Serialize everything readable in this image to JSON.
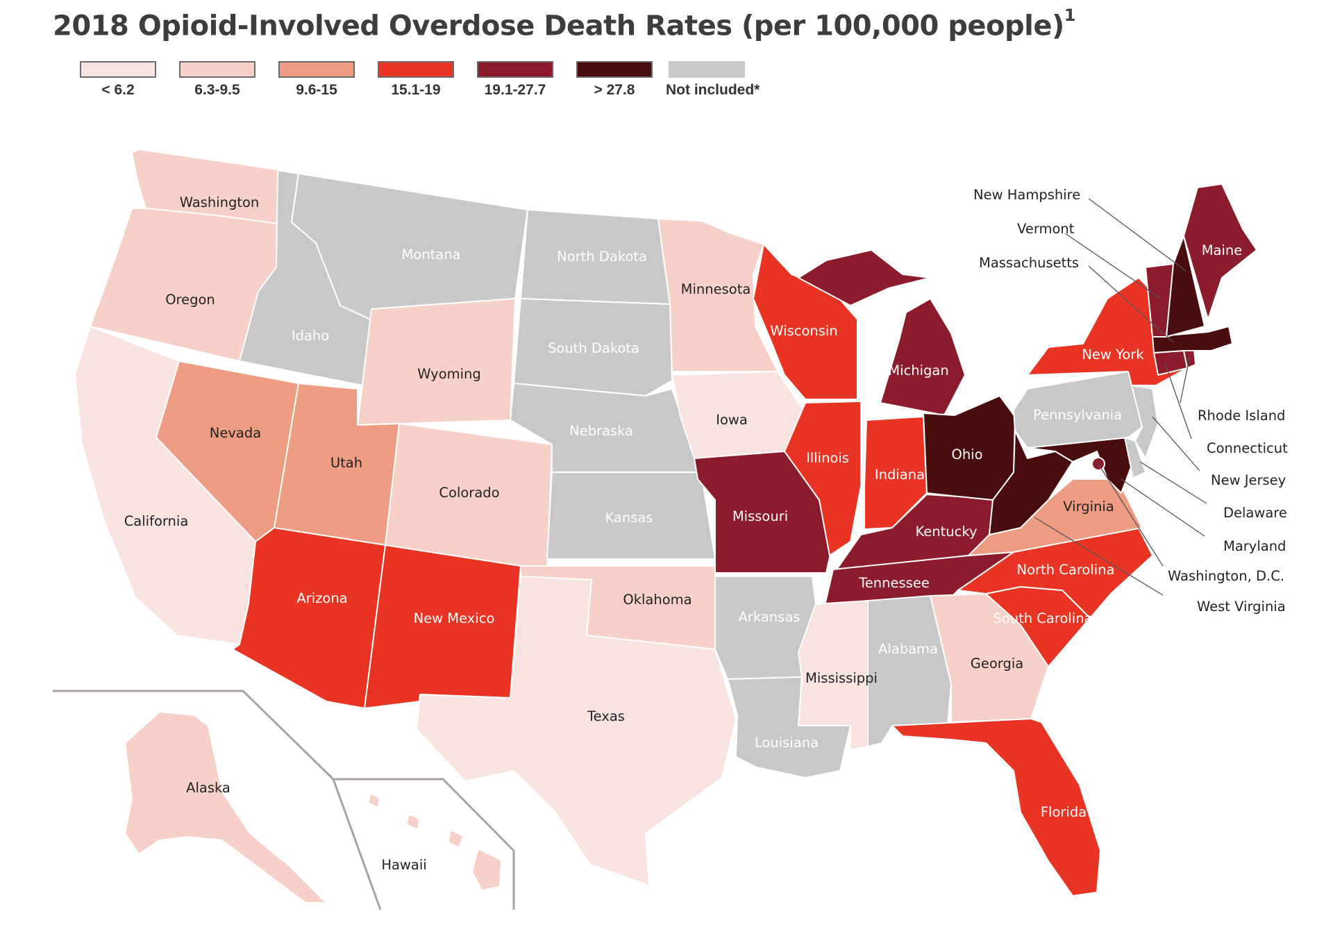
{
  "title": "2018 Opioid-Involved Overdose Death Rates (per 100,000 people)",
  "title_footnote": "1",
  "legend": [
    {
      "label": "< 6.2",
      "color": "#f9e3e0"
    },
    {
      "label": "6.3-9.5",
      "color": "#f7d1c7"
    },
    {
      "label": "9.6-15",
      "color": "#ef9c84"
    },
    {
      "label": "15.1-19",
      "color": "#e93323"
    },
    {
      "label": "19.1-27.7",
      "color": "#8c1b2b"
    },
    {
      "label": "> 27.8",
      "color": "#4a0d0d"
    },
    {
      "label": "Not included*",
      "color": "#c8c8c8"
    }
  ],
  "states": {
    "washington": {
      "label": "Washington",
      "bin": 1
    },
    "oregon": {
      "label": "Oregon",
      "bin": 1
    },
    "california": {
      "label": "California",
      "bin": 0
    },
    "idaho": {
      "label": "Idaho",
      "bin": 6
    },
    "nevada": {
      "label": "Nevada",
      "bin": 2
    },
    "montana": {
      "label": "Montana",
      "bin": 6
    },
    "wyoming": {
      "label": "Wyoming",
      "bin": 1
    },
    "utah": {
      "label": "Utah",
      "bin": 2
    },
    "arizona": {
      "label": "Arizona",
      "bin": 3
    },
    "colorado": {
      "label": "Colorado",
      "bin": 1
    },
    "new_mexico": {
      "label": "New Mexico",
      "bin": 3
    },
    "north_dakota": {
      "label": "North Dakota",
      "bin": 6
    },
    "south_dakota": {
      "label": "South Dakota",
      "bin": 6
    },
    "nebraska": {
      "label": "Nebraska",
      "bin": 6
    },
    "kansas": {
      "label": "Kansas",
      "bin": 6
    },
    "oklahoma": {
      "label": "Oklahoma",
      "bin": 1
    },
    "texas": {
      "label": "Texas",
      "bin": 0
    },
    "minnesota": {
      "label": "Minnesota",
      "bin": 1
    },
    "iowa": {
      "label": "Iowa",
      "bin": 0
    },
    "missouri": {
      "label": "Missouri",
      "bin": 4
    },
    "arkansas": {
      "label": "Arkansas",
      "bin": 6
    },
    "louisiana": {
      "label": "Louisiana",
      "bin": 6
    },
    "wisconsin": {
      "label": "Wisconsin",
      "bin": 3
    },
    "illinois": {
      "label": "Illinois",
      "bin": 3
    },
    "michigan": {
      "label": "Michigan",
      "bin": 4
    },
    "indiana": {
      "label": "Indiana",
      "bin": 3
    },
    "ohio": {
      "label": "Ohio",
      "bin": 5
    },
    "kentucky": {
      "label": "Kentucky",
      "bin": 4
    },
    "tennessee": {
      "label": "Tennessee",
      "bin": 4
    },
    "mississippi": {
      "label": "Mississippi",
      "bin": 0
    },
    "alabama": {
      "label": "Alabama",
      "bin": 6
    },
    "georgia": {
      "label": "Georgia",
      "bin": 1
    },
    "florida": {
      "label": "Florida",
      "bin": 3
    },
    "south_carolina": {
      "label": "South Carolina",
      "bin": 3
    },
    "north_carolina": {
      "label": "North Carolina",
      "bin": 3
    },
    "virginia": {
      "label": "Virginia",
      "bin": 2
    },
    "west_virginia": {
      "label": "West Virginia",
      "bin": 5
    },
    "maryland": {
      "label": "Maryland",
      "bin": 5
    },
    "delaware": {
      "label": "Delaware",
      "bin": 6
    },
    "washington_dc": {
      "label": "Washington, D.C.",
      "bin": 4
    },
    "pennsylvania": {
      "label": "Pennsylvania",
      "bin": 6
    },
    "new_jersey": {
      "label": "New Jersey",
      "bin": 6
    },
    "new_york": {
      "label": "New York",
      "bin": 3
    },
    "connecticut": {
      "label": "Connecticut",
      "bin": 4
    },
    "rhode_island": {
      "label": "Rhode Island",
      "bin": 4
    },
    "massachusetts": {
      "label": "Massachusetts",
      "bin": 5
    },
    "vermont": {
      "label": "Vermont",
      "bin": 4
    },
    "new_hampshire": {
      "label": "New Hampshire",
      "bin": 5
    },
    "maine": {
      "label": "Maine",
      "bin": 4
    },
    "alaska": {
      "label": "Alaska",
      "bin": 1
    },
    "hawaii": {
      "label": "Hawaii",
      "bin": -1
    }
  }
}
